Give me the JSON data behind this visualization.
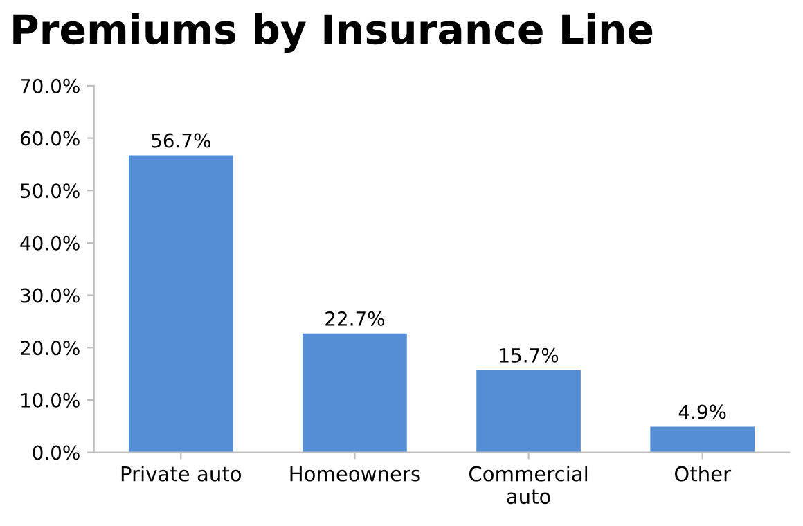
{
  "chart_data": {
    "type": "bar",
    "title": "Premiums by Insurance Line",
    "categories": [
      "Private auto",
      "Homeowners",
      "Commercial\nauto",
      "Other"
    ],
    "values": [
      56.7,
      22.7,
      15.7,
      4.9
    ],
    "value_labels": [
      "56.7%",
      "22.7%",
      "15.7%",
      "4.9%"
    ],
    "color": "#568ed6",
    "ylim": [
      0,
      70
    ],
    "yticks": [
      {
        "value": 0,
        "label": "0.0%"
      },
      {
        "value": 10,
        "label": "10.0%"
      },
      {
        "value": 20,
        "label": "20.0%"
      },
      {
        "value": 30,
        "label": "30.0%"
      },
      {
        "value": 40,
        "label": "40.0%"
      },
      {
        "value": 50,
        "label": "50.0%"
      },
      {
        "value": 60,
        "label": "60.0%"
      },
      {
        "value": 70,
        "label": "70.0%"
      }
    ],
    "grid": false,
    "legend": false
  }
}
